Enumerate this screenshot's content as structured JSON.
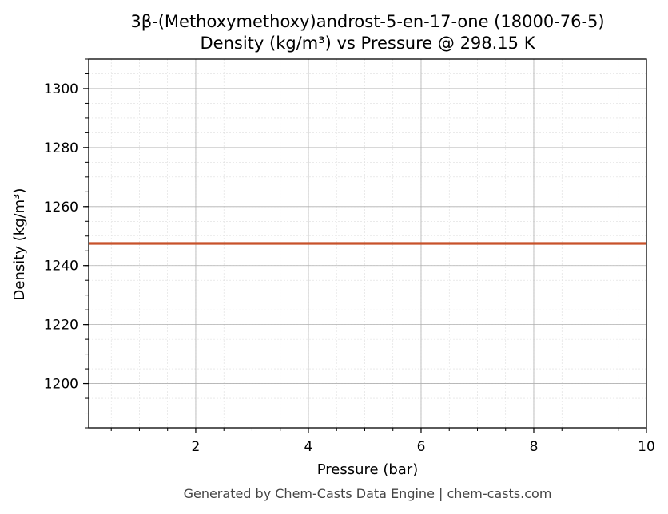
{
  "chart_data": {
    "type": "line",
    "title": "3β-(Methoxymethoxy)androst-5-en-17-one (18000-76-5)",
    "subtitle": "Density (kg/m³) vs Pressure @ 298.15 K",
    "xlabel": "Pressure (bar)",
    "ylabel": "Density (kg/m³)",
    "xlim": [
      0.1,
      10
    ],
    "ylim": [
      1185,
      1310
    ],
    "x_ticks": [
      2,
      4,
      6,
      8,
      10
    ],
    "x_tick_labels": [
      "2",
      "4",
      "6",
      "8",
      "10"
    ],
    "y_ticks": [
      1200,
      1220,
      1240,
      1260,
      1280,
      1300
    ],
    "y_tick_labels": [
      "1200",
      "1220",
      "1240",
      "1260",
      "1280",
      "1300"
    ],
    "grid": true,
    "series": [
      {
        "color": "#c8522a",
        "x": [
          0.1,
          10
        ],
        "y": [
          1247.5,
          1247.5
        ]
      }
    ]
  },
  "footer": "Generated by Chem-Casts Data Engine | chem-casts.com"
}
